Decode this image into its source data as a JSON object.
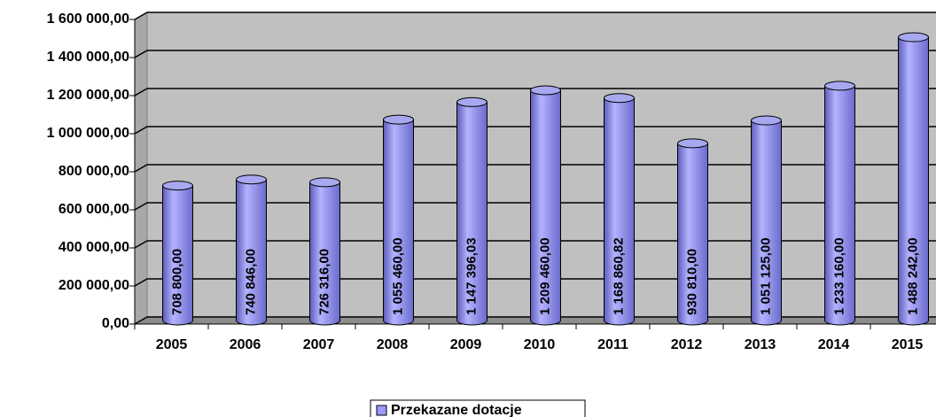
{
  "chart_data": {
    "type": "bar",
    "categories": [
      "2005",
      "2006",
      "2007",
      "2008",
      "2009",
      "2010",
      "2011",
      "2012",
      "2013",
      "2014",
      "2015"
    ],
    "series": [
      {
        "name": "Przekazane dotacje",
        "color": "#9999ff",
        "values": [
          708800,
          740846,
          726316,
          1055460,
          1147396.03,
          1209460,
          1168860.82,
          930810,
          1051125,
          1233160,
          1488242
        ],
        "value_labels": [
          "708 800,00",
          "740 846,00",
          "726 316,00",
          "1 055 460,00",
          "1 147 396,03",
          "1 209 460,00",
          "1 168 860,82",
          "930 810,00",
          "1 051 125,00",
          "1 233 160,00",
          "1 488 242,00"
        ]
      }
    ],
    "ylim": [
      0,
      1600000
    ],
    "yticks": [
      {
        "value": 0,
        "label": "0,00"
      },
      {
        "value": 200000,
        "label": "200 000,00"
      },
      {
        "value": 400000,
        "label": "400 000,00"
      },
      {
        "value": 600000,
        "label": "600 000,00"
      },
      {
        "value": 800000,
        "label": "800 000,00"
      },
      {
        "value": 1000000,
        "label": "1 000 000,00"
      },
      {
        "value": 1200000,
        "label": "1 200 000,00"
      },
      {
        "value": 1400000,
        "label": "1 400 000,00"
      },
      {
        "value": 1600000,
        "label": "1 600 000,00"
      }
    ],
    "grid": true,
    "legend": "bottom"
  }
}
